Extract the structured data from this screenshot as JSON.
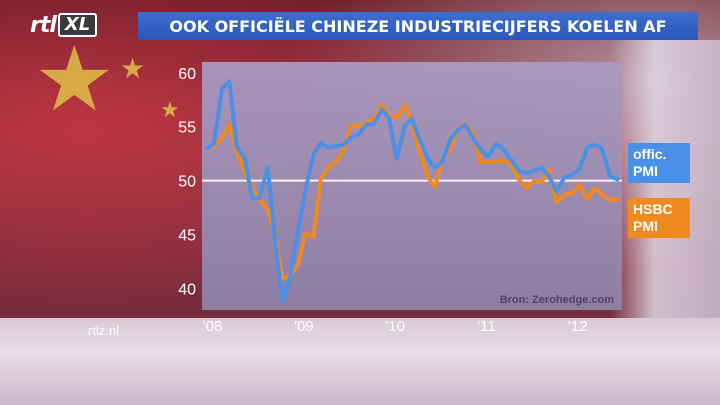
{
  "header": {
    "logo_rtl": "rtl",
    "logo_xl": "XL",
    "title": "OOK OFFICIËLE CHINEZE INDUSTRIECIJFERS KOELEN AF"
  },
  "footer": {
    "site": "rtlz.nl"
  },
  "colors": {
    "title_bar": "#2a56b8",
    "official_series": "#4a8fe8",
    "hsbc_series": "#f08a1e",
    "plot_background": "#9c8fb3"
  },
  "chart_data": {
    "type": "line",
    "title": "",
    "xlabel": "",
    "ylabel": "",
    "ylim": [
      38,
      61
    ],
    "yticks": [
      "60",
      "55",
      "50",
      "45",
      "40"
    ],
    "xticks": [
      "'08",
      "'09",
      "'10",
      "'11",
      "'12"
    ],
    "reference_line": 50,
    "grid": false,
    "source": "Bron: Zerohedge.com",
    "series": [
      {
        "name": "offic. PMI",
        "color": "#4a8fe8",
        "x": [
          2008.0,
          2008.08,
          2008.17,
          2008.25,
          2008.33,
          2008.42,
          2008.5,
          2008.58,
          2008.67,
          2008.75,
          2008.83,
          2008.92,
          2009.0,
          2009.08,
          2009.17,
          2009.25,
          2009.33,
          2009.42,
          2009.5,
          2009.58,
          2009.67,
          2009.75,
          2009.83,
          2009.92,
          2010.0,
          2010.08,
          2010.17,
          2010.25,
          2010.33,
          2010.42,
          2010.5,
          2010.58,
          2010.67,
          2010.75,
          2010.83,
          2010.92,
          2011.0,
          2011.08,
          2011.17,
          2011.25,
          2011.33,
          2011.42,
          2011.5,
          2011.58,
          2011.67,
          2011.75,
          2011.83,
          2011.92,
          2012.0,
          2012.08,
          2012.17,
          2012.25,
          2012.33,
          2012.42,
          2012.5
        ],
        "y": [
          53.0,
          53.4,
          58.5,
          59.2,
          53.2,
          52.0,
          48.4,
          48.4,
          51.2,
          44.6,
          38.8,
          41.2,
          45.3,
          49.0,
          52.4,
          53.5,
          53.1,
          53.2,
          53.3,
          54.0,
          54.3,
          55.2,
          55.2,
          56.6,
          55.8,
          52.0,
          55.1,
          55.7,
          53.9,
          52.1,
          51.2,
          51.7,
          53.8,
          54.7,
          55.2,
          53.9,
          52.9,
          52.2,
          53.4,
          52.9,
          52.0,
          50.9,
          50.7,
          50.9,
          51.2,
          50.4,
          49.0,
          50.3,
          50.5,
          51.0,
          53.1,
          53.3,
          53.0,
          50.4,
          50.1
        ]
      },
      {
        "name": "HSBC PMI",
        "color": "#f08a1e",
        "x": [
          2008.0,
          2008.08,
          2008.17,
          2008.25,
          2008.33,
          2008.42,
          2008.5,
          2008.58,
          2008.67,
          2008.75,
          2008.83,
          2008.92,
          2009.0,
          2009.08,
          2009.17,
          2009.25,
          2009.33,
          2009.42,
          2009.5,
          2009.58,
          2009.67,
          2009.75,
          2009.83,
          2009.92,
          2010.0,
          2010.08,
          2010.17,
          2010.25,
          2010.33,
          2010.42,
          2010.5,
          2010.58,
          2010.67,
          2010.75,
          2010.83,
          2010.92,
          2011.0,
          2011.08,
          2011.17,
          2011.25,
          2011.33,
          2011.42,
          2011.5,
          2011.58,
          2011.67,
          2011.75,
          2011.83,
          2011.92,
          2012.0,
          2012.08,
          2012.17,
          2012.25,
          2012.33,
          2012.42,
          2012.5
        ],
        "y": [
          53.0,
          53.2,
          54.0,
          55.2,
          52.7,
          50.8,
          49.3,
          48.2,
          47.3,
          45.2,
          40.9,
          41.2,
          42.2,
          45.1,
          44.8,
          50.1,
          51.2,
          51.8,
          52.8,
          55.1,
          55.0,
          55.4,
          55.7,
          57.0,
          56.1,
          55.8,
          57.0,
          55.4,
          52.7,
          50.4,
          49.4,
          51.9,
          52.9,
          54.8,
          55.3,
          54.4,
          51.7,
          51.7,
          51.8,
          51.8,
          51.6,
          50.1,
          49.3,
          49.9,
          49.9,
          51.0,
          48.0,
          48.7,
          48.8,
          49.6,
          48.3,
          49.3,
          48.7,
          48.2,
          48.2
        ]
      }
    ]
  }
}
